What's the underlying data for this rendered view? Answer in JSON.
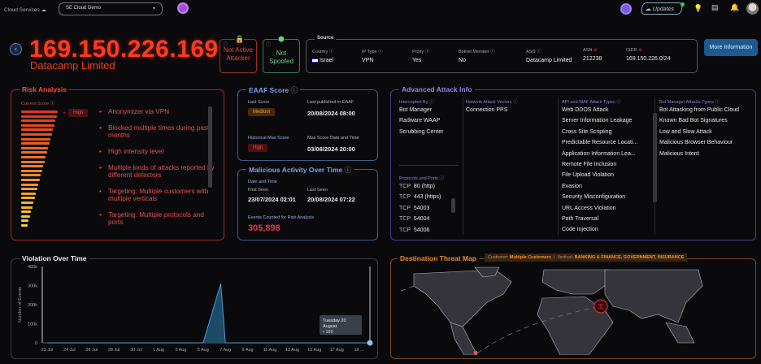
{
  "header": {
    "logo": "Cloud Services",
    "account_select": "SE Cloud Demo",
    "updates_label": "Updates",
    "icons": [
      "bulb-icon",
      "notes-icon",
      "bell-icon"
    ]
  },
  "ip_header": {
    "ip": "169.150.226.169",
    "org": "Datacamp Limited",
    "attacker_badge": "Not Active Attacker",
    "spoofed_badge": "Not Spoofed"
  },
  "source": {
    "title": "Source",
    "fields": [
      {
        "label": "Country",
        "value": "Israel"
      },
      {
        "label": "IP Type",
        "value": "VPN"
      },
      {
        "label": "Proxy",
        "value": "Yes"
      },
      {
        "label": "Botnet Member",
        "value": "No"
      },
      {
        "label": "ASO",
        "value": "Datacamp Limited"
      },
      {
        "label": "ASN",
        "value": "212238"
      },
      {
        "label": "CIDR",
        "value": "169.150.226.0/24"
      }
    ],
    "more_button": "More Information"
  },
  "risk": {
    "title": "Risk Analysis",
    "score_label": "Current Score",
    "score": "High",
    "reasons": [
      "Anonymizer via VPN",
      "Blocked multiple times during past months",
      "High intensity level",
      "Multiple kinds of attacks reported by different detectors",
      "Targeting: Multiple customers with multiple verticals",
      "Targeting: Multiple protocols and ports"
    ]
  },
  "eaaf": {
    "title": "EAAF Score",
    "last_score_label": "Last Score",
    "last_score": "Medium",
    "published_label": "Last published in EAAF",
    "published": "20/08/2024 08:00",
    "max_label": "Historical Max Score",
    "max_score": "High",
    "max_date_label": "Max Score Date and Time",
    "max_date": "03/08/2024 20:00"
  },
  "malicious": {
    "title": "Malicious Activity Over Time",
    "date_label": "Date and Time",
    "first_label": "First Seen",
    "first": "23/07/2024 02:01",
    "last_label": "Last Seen",
    "last": "20/08/2024 07:22",
    "events_label": "Events Counted for Risk Analysis",
    "events": "305,898"
  },
  "advanced": {
    "title": "Advanced Attack Info",
    "intercepted_label": "Intercepted By",
    "intercepted": [
      "Bot Manager",
      "Radware WAAP",
      "Scrubbing Center"
    ],
    "protocols_label": "Protocols and Ports",
    "protocols": [
      {
        "proto": "TCP",
        "port": "80 (http)"
      },
      {
        "proto": "TCP",
        "port": "443 (https)"
      },
      {
        "proto": "TCP",
        "port": "54003"
      },
      {
        "proto": "TCP",
        "port": "54004"
      },
      {
        "proto": "TCP",
        "port": "54006"
      }
    ],
    "network_label": "Network Attack Vectors",
    "network": [
      "Connection PPS"
    ],
    "waf_label": "API and WAF Attack Types",
    "waf": [
      "Web DDOS Attack",
      "Server Information Leakage",
      "Cross Site Scripting",
      "Predictable Resource Locati...",
      "Application Information Lea...",
      "Remote File Inclusion",
      "File Upload Violation",
      "Evasion",
      "Security Misconfiguration",
      "URL Access Violation",
      "Path Traversal",
      "Code Injection"
    ],
    "bot_label": "Bot Manager Attacks Types",
    "bot": [
      "Bot Attacking from Public Cloud",
      "Known Bad Bot Signatures",
      "Low and Slow Attack",
      "Malicious Browser Behaviour",
      "Malicious Intent"
    ]
  },
  "violation": {
    "title": "Violation Over Time",
    "tooltip_date": "Tuesday 20 August",
    "tooltip_value": "• 160"
  },
  "chart_data": {
    "type": "area",
    "title": "Violation Over Time",
    "ylabel": "Number of Events",
    "ylim": [
      0,
      400000
    ],
    "yticks": [
      "0",
      "100k",
      "200k",
      "300k",
      "400k"
    ],
    "xticks": [
      "22 Jul",
      "24 Jul",
      "26 Jul",
      "28 Jul",
      "30 Jul",
      "1 Aug",
      "3 Aug",
      "5 Aug",
      "7 Aug",
      "9 Aug",
      "11 Aug",
      "13 Aug",
      "15 Aug",
      "17 Aug",
      "19 ..."
    ],
    "points": [
      {
        "x": "22 Jul",
        "y": 0
      },
      {
        "x": "5 Aug",
        "y": 0
      },
      {
        "x": "6 Aug",
        "y": 310000
      },
      {
        "x": "7 Aug",
        "y": 0
      },
      {
        "x": "19 Aug",
        "y": 0
      },
      {
        "x": "20 Aug",
        "y": 160
      }
    ],
    "color": "#4a9ad8"
  },
  "threat_map": {
    "title": "Destination Threat Map",
    "customer_label": "Customer:",
    "customer": "Multiple Customers",
    "vertical_label": "Vertical:",
    "vertical": "BANKING & FINANCE, GOVERNMENT, INSURANCE"
  },
  "colors": {
    "danger": "#ff3a1e",
    "safe": "#6fd08c",
    "accent": "#1d5a92",
    "purple": "#9d7ff0"
  }
}
